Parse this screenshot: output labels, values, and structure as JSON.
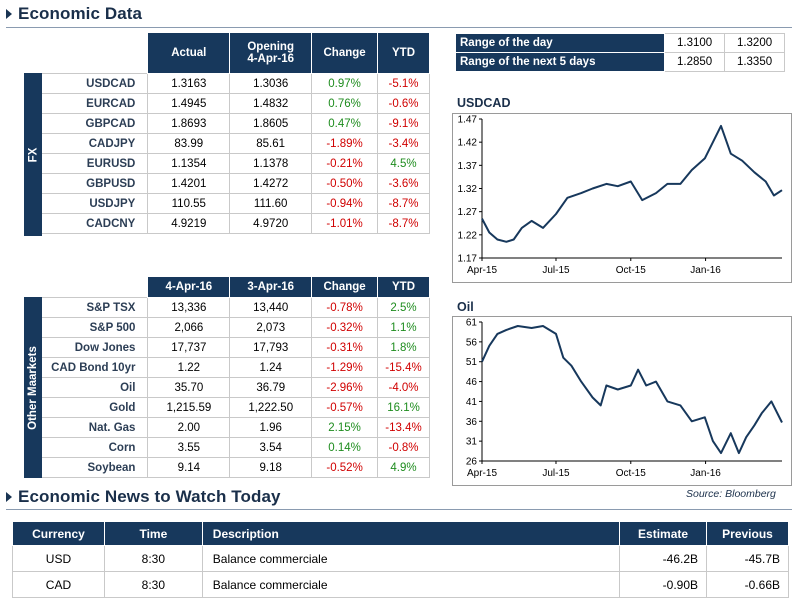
{
  "sections": {
    "economic_data": "Economic Data",
    "news": "Economic News to Watch Today"
  },
  "fx": {
    "side_label": "FX",
    "headers": {
      "actual": "Actual",
      "opening_1": "Opening",
      "opening_2": "4-Apr-16",
      "change": "Change",
      "ytd": "YTD"
    },
    "rows": [
      {
        "name": "USDCAD",
        "actual": "1.3163",
        "opening": "1.3036",
        "change": "0.97%",
        "ytd": "-5.1%"
      },
      {
        "name": "EURCAD",
        "actual": "1.4945",
        "opening": "1.4832",
        "change": "0.76%",
        "ytd": "-0.6%"
      },
      {
        "name": "GBPCAD",
        "actual": "1.8693",
        "opening": "1.8605",
        "change": "0.47%",
        "ytd": "-9.1%"
      },
      {
        "name": "CADJPY",
        "actual": "83.99",
        "opening": "85.61",
        "change": "-1.89%",
        "ytd": "-3.4%"
      },
      {
        "name": "EURUSD",
        "actual": "1.1354",
        "opening": "1.1378",
        "change": "-0.21%",
        "ytd": "4.5%"
      },
      {
        "name": "GBPUSD",
        "actual": "1.4201",
        "opening": "1.4272",
        "change": "-0.50%",
        "ytd": "-3.6%"
      },
      {
        "name": "USDJPY",
        "actual": "110.55",
        "opening": "111.60",
        "change": "-0.94%",
        "ytd": "-8.7%"
      },
      {
        "name": "CADCNY",
        "actual": "4.9219",
        "opening": "4.9720",
        "change": "-1.01%",
        "ytd": "-8.7%"
      }
    ]
  },
  "markets": {
    "side_label": "Other Maarkets",
    "headers": {
      "col1": "4-Apr-16",
      "col2": "3-Apr-16",
      "change": "Change",
      "ytd": "YTD"
    },
    "rows": [
      {
        "name": "S&P TSX",
        "c1": "13,336",
        "c2": "13,440",
        "change": "-0.78%",
        "ytd": "2.5%"
      },
      {
        "name": "S&P 500",
        "c1": "2,066",
        "c2": "2,073",
        "change": "-0.32%",
        "ytd": "1.1%"
      },
      {
        "name": "Dow Jones",
        "c1": "17,737",
        "c2": "17,793",
        "change": "-0.31%",
        "ytd": "1.8%"
      },
      {
        "name": "CAD Bond 10yr",
        "c1": "1.22",
        "c2": "1.24",
        "change": "-1.29%",
        "ytd": "-15.4%"
      },
      {
        "name": "Oil",
        "c1": "35.70",
        "c2": "36.79",
        "change": "-2.96%",
        "ytd": "-4.0%"
      },
      {
        "name": "Gold",
        "c1": "1,215.59",
        "c2": "1,222.50",
        "change": "-0.57%",
        "ytd": "16.1%"
      },
      {
        "name": "Nat. Gas",
        "c1": "2.00",
        "c2": "1.96",
        "change": "2.15%",
        "ytd": "-13.4%"
      },
      {
        "name": "Corn",
        "c1": "3.55",
        "c2": "3.54",
        "change": "0.14%",
        "ytd": "-0.8%"
      },
      {
        "name": "Soybean",
        "c1": "9.14",
        "c2": "9.18",
        "change": "-0.52%",
        "ytd": "4.9%"
      }
    ]
  },
  "ranges": [
    {
      "label": "Range of the day",
      "low": "1.3100",
      "high": "1.3200"
    },
    {
      "label": "Range of the next 5 days",
      "low": "1.2850",
      "high": "1.3350"
    }
  ],
  "source": "Source: Bloomberg",
  "news": {
    "headers": {
      "currency": "Currency",
      "time": "Time",
      "description": "Description",
      "estimate": "Estimate",
      "previous": "Previous"
    },
    "rows": [
      {
        "currency": "USD",
        "time": "8:30",
        "description": "Balance commerciale",
        "estimate": "-46.2B",
        "previous": "-45.7B"
      },
      {
        "currency": "CAD",
        "time": "8:30",
        "description": "Balance commerciale",
        "estimate": "-0.90B",
        "previous": "-0.66B"
      }
    ]
  },
  "colors": {
    "navy": "#17385c",
    "positive": "#1e8c1e",
    "negative": "#d00000"
  },
  "chart_data": [
    {
      "type": "line",
      "title": "USDCAD",
      "x_ticks": [
        "Apr-15",
        "Jul-15",
        "Oct-15",
        "Jan-16"
      ],
      "y_ticks": [
        1.17,
        1.22,
        1.27,
        1.32,
        1.37,
        1.42,
        1.47
      ],
      "ylim": [
        1.17,
        1.47
      ],
      "xlim": [
        "2015-04-01",
        "2016-04-04"
      ],
      "series": [
        {
          "x": [
            "2015-04-01",
            "2015-04-10",
            "2015-04-20",
            "2015-05-01",
            "2015-05-10",
            "2015-05-20",
            "2015-06-01",
            "2015-06-15",
            "2015-07-01",
            "2015-07-15",
            "2015-08-01",
            "2015-08-15",
            "2015-09-01",
            "2015-09-15",
            "2015-10-01",
            "2015-10-15",
            "2015-11-01",
            "2015-11-15",
            "2015-12-01",
            "2015-12-15",
            "2015-12-31",
            "2016-01-10",
            "2016-01-20",
            "2016-02-01",
            "2016-02-15",
            "2016-03-01",
            "2016-03-15",
            "2016-03-25",
            "2016-04-04"
          ],
          "y": [
            1.255,
            1.225,
            1.21,
            1.205,
            1.21,
            1.235,
            1.25,
            1.235,
            1.265,
            1.3,
            1.31,
            1.32,
            1.33,
            1.325,
            1.335,
            1.295,
            1.31,
            1.33,
            1.33,
            1.36,
            1.385,
            1.42,
            1.455,
            1.395,
            1.38,
            1.355,
            1.335,
            1.305,
            1.3163
          ]
        }
      ]
    },
    {
      "type": "line",
      "title": "Oil",
      "x_ticks": [
        "Apr-15",
        "Jul-15",
        "Oct-15",
        "Jan-16"
      ],
      "y_ticks": [
        26,
        31,
        36,
        41,
        46,
        51,
        56,
        61
      ],
      "ylim": [
        26,
        61
      ],
      "xlim": [
        "2015-04-01",
        "2016-04-04"
      ],
      "series": [
        {
          "x": [
            "2015-04-01",
            "2015-04-10",
            "2015-04-20",
            "2015-05-01",
            "2015-05-15",
            "2015-06-01",
            "2015-06-15",
            "2015-07-01",
            "2015-07-10",
            "2015-07-20",
            "2015-08-01",
            "2015-08-15",
            "2015-08-25",
            "2015-09-01",
            "2015-09-15",
            "2015-10-01",
            "2015-10-10",
            "2015-10-20",
            "2015-11-01",
            "2015-11-15",
            "2015-12-01",
            "2015-12-15",
            "2015-12-31",
            "2016-01-10",
            "2016-01-20",
            "2016-02-01",
            "2016-02-11",
            "2016-02-20",
            "2016-03-01",
            "2016-03-10",
            "2016-03-22",
            "2016-04-04"
          ],
          "y": [
            51,
            55,
            58,
            59,
            60,
            59.5,
            60,
            58,
            52,
            50,
            46,
            42,
            40,
            45,
            44,
            45,
            49,
            45,
            46,
            41,
            40,
            36,
            37,
            31,
            28,
            33,
            28,
            32,
            35,
            38,
            41,
            35.7
          ]
        }
      ]
    }
  ]
}
